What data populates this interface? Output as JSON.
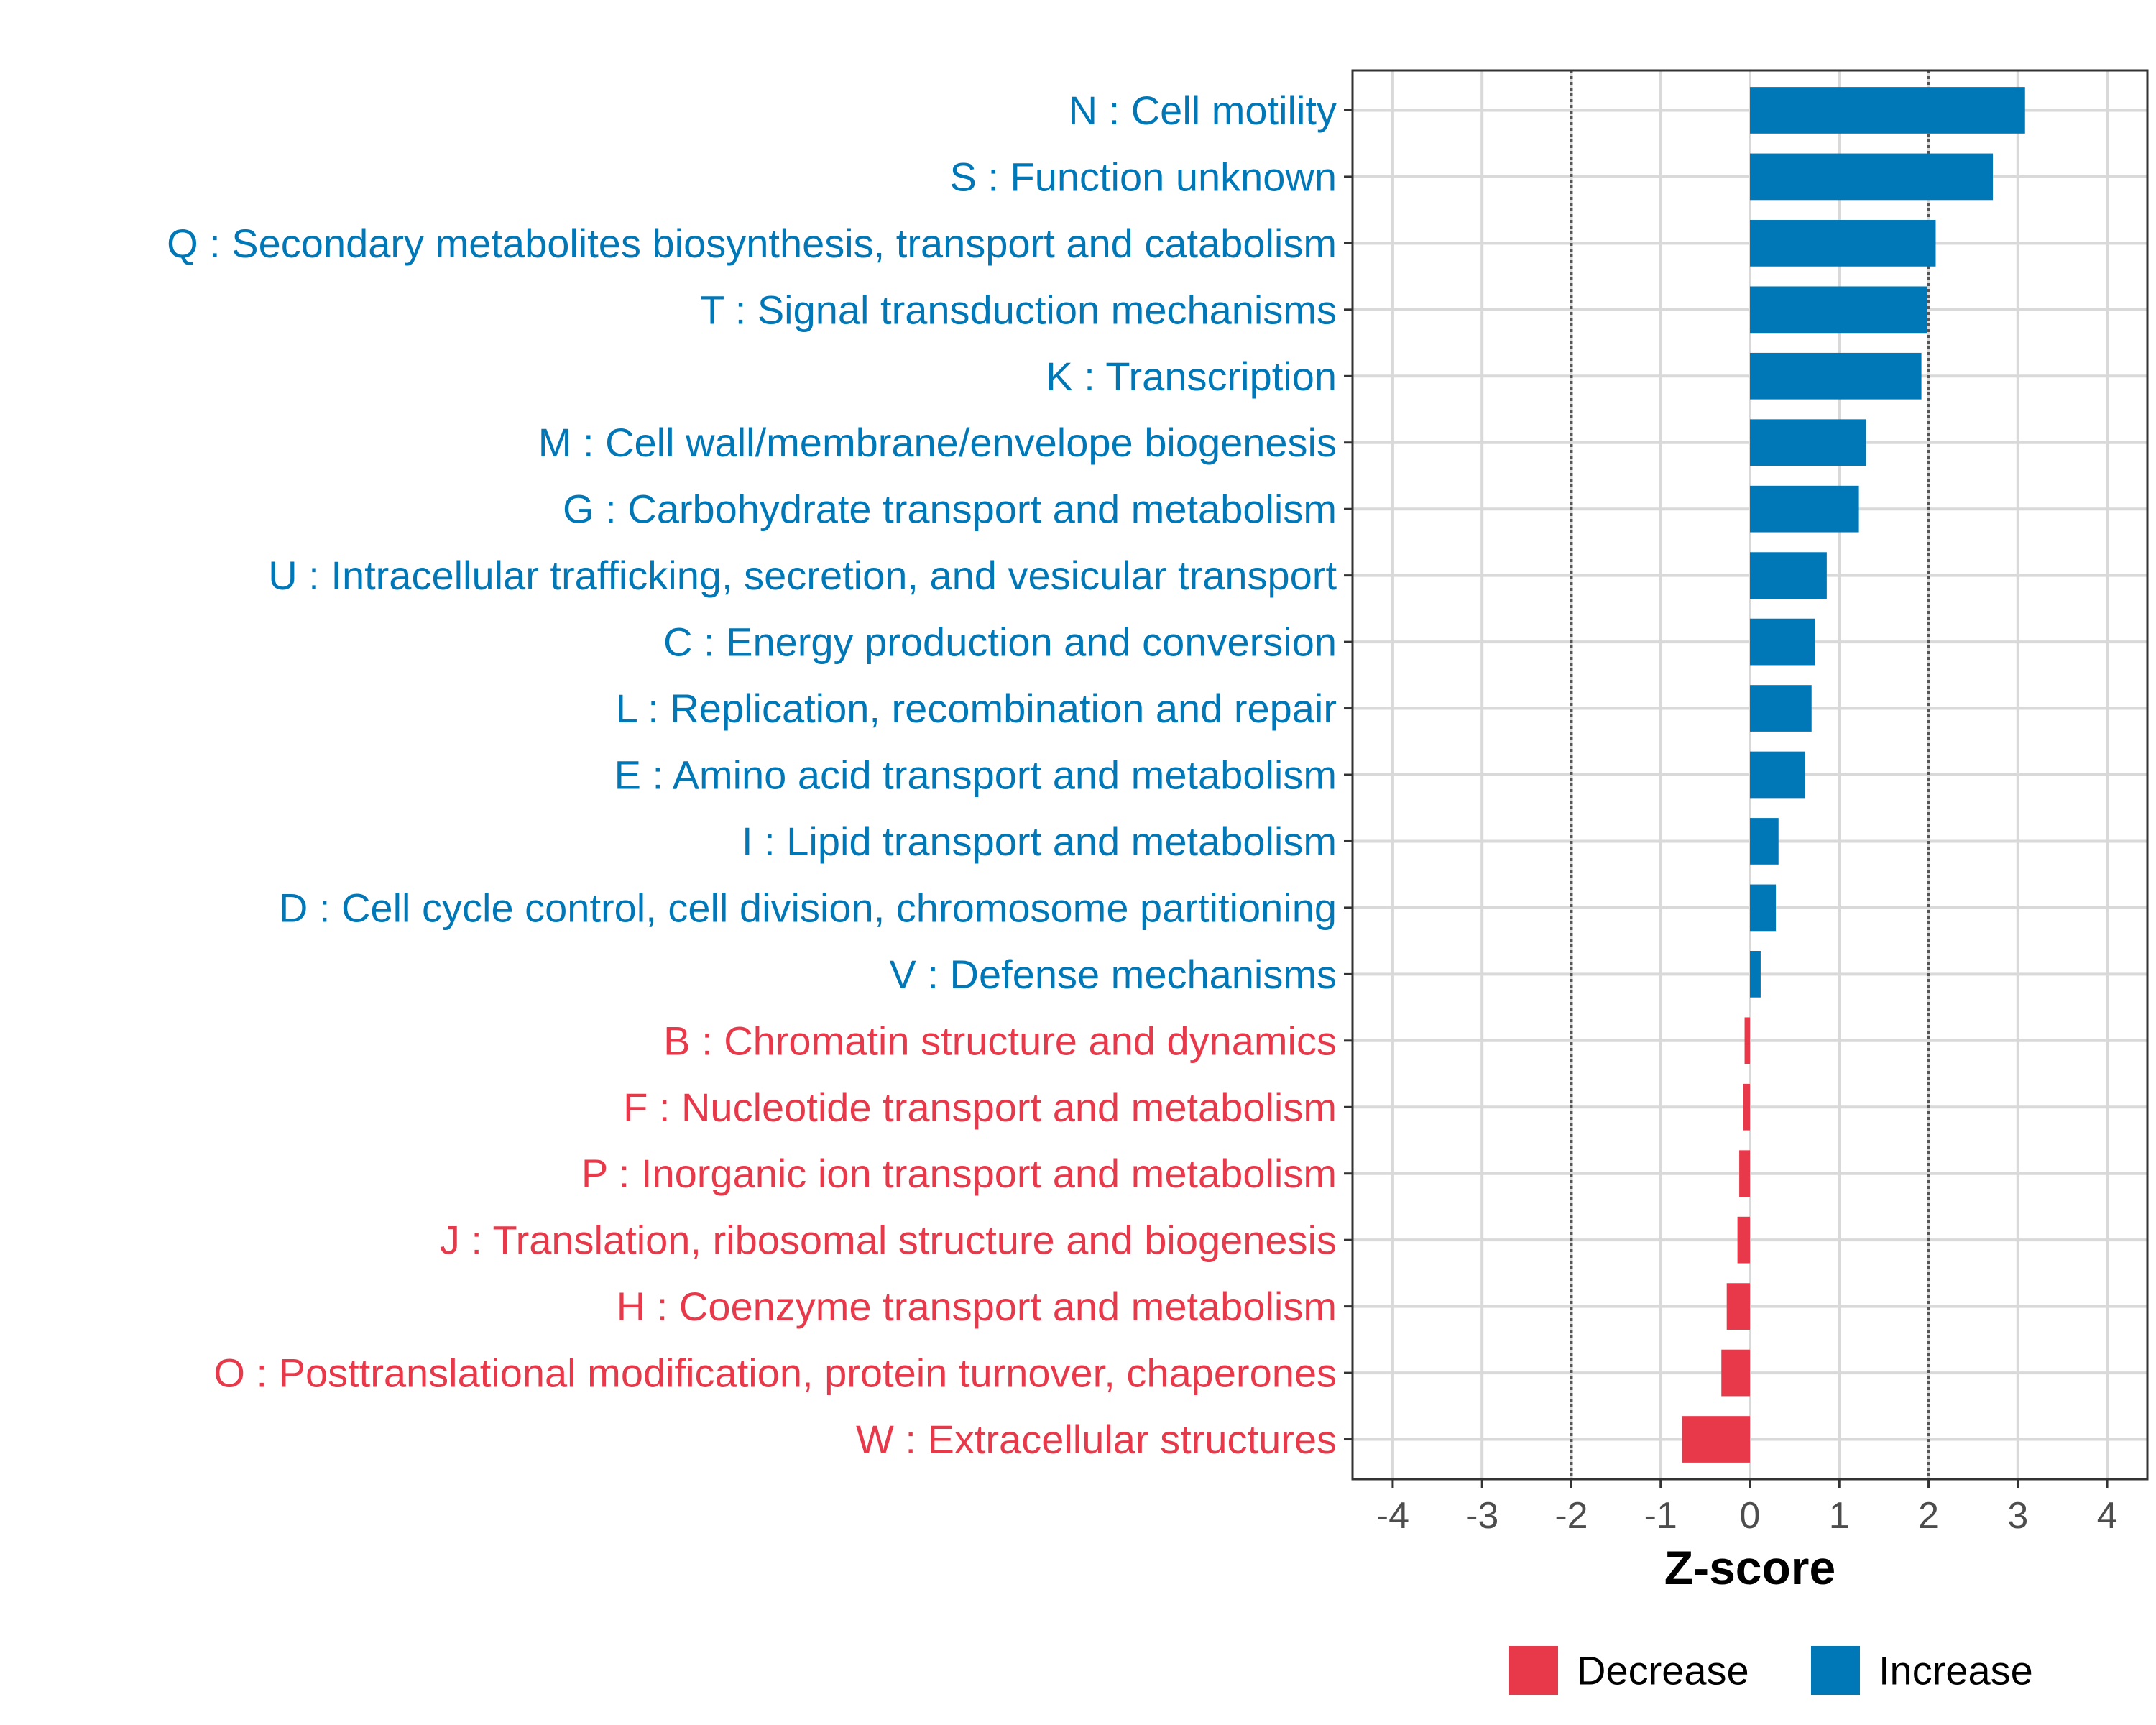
{
  "chart_data": {
    "type": "bar",
    "orientation": "horizontal",
    "title": "",
    "xlabel": "Z-score",
    "ylabel": "",
    "xlim": [
      -4.45,
      4.45
    ],
    "xticks": [
      -4,
      -3,
      -2,
      -1,
      0,
      1,
      2,
      3,
      4
    ],
    "threshold_lines": [
      -2,
      2
    ],
    "grid": true,
    "legend_position": "bottom",
    "colors": {
      "Decrease": "#e8394b",
      "Increase": "#0077b7"
    },
    "legend": [
      {
        "key": "Decrease",
        "label": "Decrease"
      },
      {
        "key": "Increase",
        "label": "Increase"
      }
    ],
    "categories": [
      "N : Cell motility",
      "S : Function unknown",
      "Q : Secondary metabolites biosynthesis, transport and catabolism",
      "T : Signal transduction mechanisms",
      "K : Transcription",
      "M : Cell wall/membrane/envelope biogenesis",
      "G : Carbohydrate transport and metabolism",
      "U : Intracellular trafficking, secretion, and vesicular transport",
      "C : Energy production and conversion",
      "L : Replication, recombination and repair",
      "E : Amino acid transport and metabolism",
      "I : Lipid transport and metabolism",
      "D : Cell cycle control, cell division, chromosome partitioning",
      "V : Defense mechanisms",
      "B : Chromatin structure and dynamics",
      "F : Nucleotide transport and metabolism",
      "P : Inorganic ion transport and metabolism",
      "J : Translation, ribosomal structure and biogenesis",
      "H : Coenzyme transport and metabolism",
      "O : Posttranslational modification, protein turnover, chaperones",
      "W : Extracellular structures"
    ],
    "values": [
      3.08,
      2.72,
      2.08,
      1.98,
      1.92,
      1.3,
      1.22,
      0.86,
      0.73,
      0.69,
      0.62,
      0.32,
      0.29,
      0.12,
      -0.06,
      -0.08,
      -0.12,
      -0.14,
      -0.26,
      -0.32,
      -0.76
    ],
    "groups": [
      "Increase",
      "Increase",
      "Increase",
      "Increase",
      "Increase",
      "Increase",
      "Increase",
      "Increase",
      "Increase",
      "Increase",
      "Increase",
      "Increase",
      "Increase",
      "Increase",
      "Decrease",
      "Decrease",
      "Decrease",
      "Decrease",
      "Decrease",
      "Decrease",
      "Decrease"
    ]
  }
}
